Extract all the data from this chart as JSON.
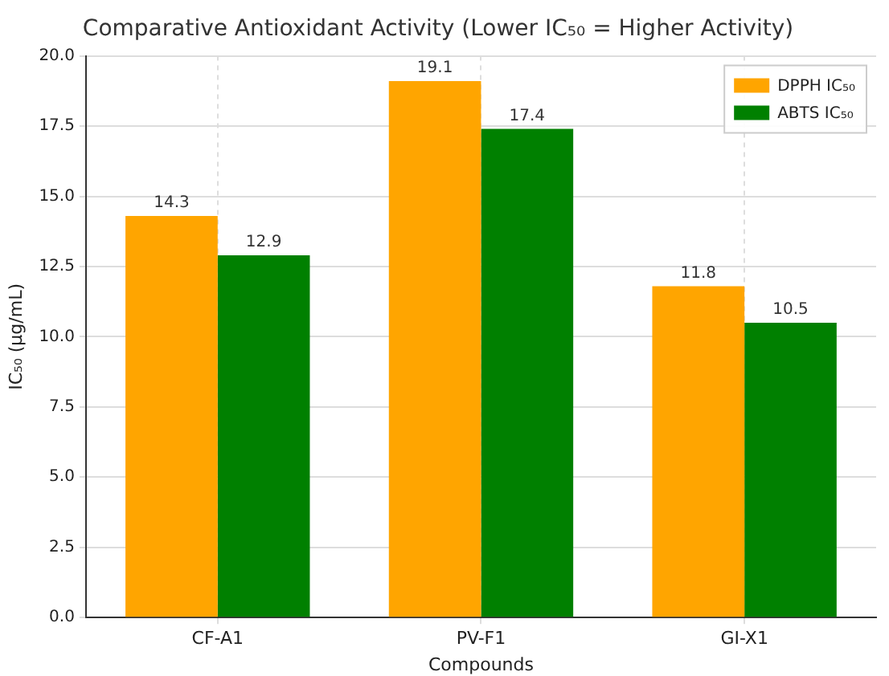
{
  "chart_data": {
    "type": "bar",
    "title": "Comparative Antioxidant Activity (Lower IC₅₀ = Higher Activity)",
    "xlabel": "Compounds",
    "ylabel": "IC₅₀ (µg/mL)",
    "categories": [
      "CF-A1",
      "PV-F1",
      "GI-X1"
    ],
    "series": [
      {
        "name": "DPPH IC₅₀",
        "color": "#ffa500",
        "values": [
          14.3,
          19.1,
          11.8
        ]
      },
      {
        "name": "ABTS IC₅₀",
        "color": "#008000",
        "values": [
          12.9,
          17.4,
          10.5
        ]
      }
    ],
    "ylim": [
      0,
      20
    ],
    "yticks": [
      {
        "value": 0,
        "label": "0.0"
      },
      {
        "value": 2.5,
        "label": "2.5"
      },
      {
        "value": 5,
        "label": "5.0"
      },
      {
        "value": 7.5,
        "label": "7.5"
      },
      {
        "value": 10,
        "label": "10.0"
      },
      {
        "value": 12.5,
        "label": "12.5"
      },
      {
        "value": 15,
        "label": "15.0"
      },
      {
        "value": 17.5,
        "label": "17.5"
      },
      {
        "value": 20,
        "label": "20.0"
      }
    ],
    "grid": true,
    "legend": "top right",
    "data_labels": true
  }
}
